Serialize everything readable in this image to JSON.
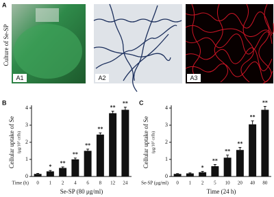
{
  "figure": {
    "panel_a": "A",
    "culture_label": "Culture of Se-SP",
    "photo_labels": [
      "A1",
      "A2",
      "A3"
    ]
  },
  "chart_data": [
    {
      "type": "bar",
      "panel": "B",
      "ylabel": "Cellular uptake of Se",
      "ylabel_unit": "(μg/10⁷ cells)",
      "row_label": "Time (h)",
      "xlabel": "Se-SP (80 μg/ml)",
      "categories": [
        "0",
        "1",
        "2",
        "4",
        "6",
        "8",
        "12",
        "24"
      ],
      "values": [
        0.15,
        0.3,
        0.5,
        1.0,
        1.5,
        2.45,
        3.7,
        3.9
      ],
      "errors": [
        0.03,
        0.05,
        0.06,
        0.08,
        0.1,
        0.1,
        0.12,
        0.15
      ],
      "annotations": [
        null,
        "*",
        "**",
        "**",
        "**",
        "**",
        "**",
        "**"
      ],
      "color": "#111111",
      "ylim": [
        0,
        4
      ],
      "yticks": [
        0,
        1,
        2,
        3,
        4
      ]
    },
    {
      "type": "bar",
      "panel": "C",
      "ylabel": "Cellular uptake of Se",
      "ylabel_unit": "(μg/10⁷ cells)",
      "row_label": "Se-SP (μg/ml)",
      "xlabel": "Time (24 h)",
      "categories": [
        "0",
        "1",
        "2",
        "5",
        "10",
        "20",
        "40",
        "80"
      ],
      "values": [
        0.15,
        0.18,
        0.25,
        0.6,
        1.1,
        1.55,
        3.05,
        3.9
      ],
      "errors": [
        0.02,
        0.03,
        0.05,
        0.1,
        0.15,
        0.15,
        0.2,
        0.2
      ],
      "annotations": [
        null,
        null,
        "*",
        "**",
        "**",
        "**",
        "**",
        "**"
      ],
      "color": "#111111",
      "ylim": [
        0,
        4
      ],
      "yticks": [
        0,
        1,
        2,
        3,
        4
      ]
    }
  ]
}
